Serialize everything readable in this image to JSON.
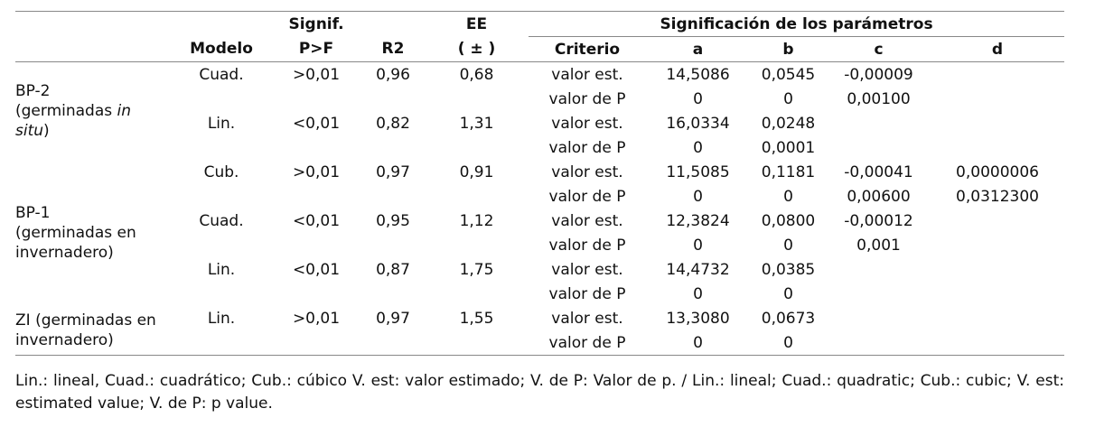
{
  "table": {
    "header": {
      "top": {
        "signif": "Signif.",
        "ee": "EE",
        "params": "Significación de los parámetros"
      },
      "columns": [
        "Modelo",
        "P>F",
        "R2",
        "( ± )",
        "Criterio",
        "a",
        "b",
        "c",
        "d"
      ]
    },
    "groups": [
      {
        "name": "BP-2",
        "desc": [
          {
            "text": "(germinadas "
          },
          {
            "text": "in situ",
            "italic": true
          },
          {
            "text": ")"
          }
        ],
        "models": [
          {
            "model": "Cuad.",
            "signif": ">0,01",
            "r2": "0,96",
            "ee": "0,68",
            "rows": [
              [
                "valor est.",
                "14,5086",
                "0,0545",
                "-0,00009"
              ],
              [
                "valor de P",
                "0",
                "0",
                "0,00100"
              ]
            ]
          },
          {
            "model": "Lin.",
            "signif": "<0,01",
            "r2": "0,82",
            "ee": "1,31",
            "rows": [
              [
                "valor est.",
                "16,0334",
                "0,0248"
              ],
              [
                "valor de P",
                "0",
                "0,0001"
              ]
            ]
          }
        ]
      },
      {
        "name": "BP-1",
        "desc": [
          {
            "text": "(germinadas en invernadero)"
          }
        ],
        "models": [
          {
            "model": "Cub.",
            "signif": ">0,01",
            "r2": "0,97",
            "ee": "0,91",
            "rows": [
              [
                "valor est.",
                "11,5085",
                "0,1181",
                "-0,00041",
                "0,0000006"
              ],
              [
                "valor de P",
                "0",
                "0",
                "0,00600",
                "0,0312300"
              ]
            ]
          },
          {
            "model": "Cuad.",
            "signif": "<0,01",
            "r2": "0,95",
            "ee": "1,12",
            "rows": [
              [
                "valor est.",
                "12,3824",
                "0,0800",
                "-0,00012"
              ],
              [
                "valor de P",
                "0",
                "0",
                "0,001"
              ]
            ]
          },
          {
            "model": "Lin.",
            "signif": "<0,01",
            "r2": "0,87",
            "ee": "1,75",
            "rows": [
              [
                "valor est.",
                "14,4732",
                "0,0385"
              ],
              [
                "valor de P",
                "0",
                "0"
              ]
            ]
          }
        ]
      },
      {
        "name": "ZI (germinadas en invernadero)",
        "models": [
          {
            "model": "Lin.",
            "signif": ">0,01",
            "r2": "0,97",
            "ee": "1,55",
            "rows": [
              [
                "valor est.",
                "13,3080",
                "0,0673"
              ],
              [
                "valor de P",
                "0",
                "0"
              ]
            ]
          }
        ]
      }
    ]
  },
  "footnote": "Lin.: lineal, Cuad.: cuadrático; Cub.: cúbico V. est: valor estimado; V. de P: Valor de p. / Lin.: lineal; Cuad.: quadratic; Cub.: cubic; V. est: estimated value; V. de P: p value."
}
